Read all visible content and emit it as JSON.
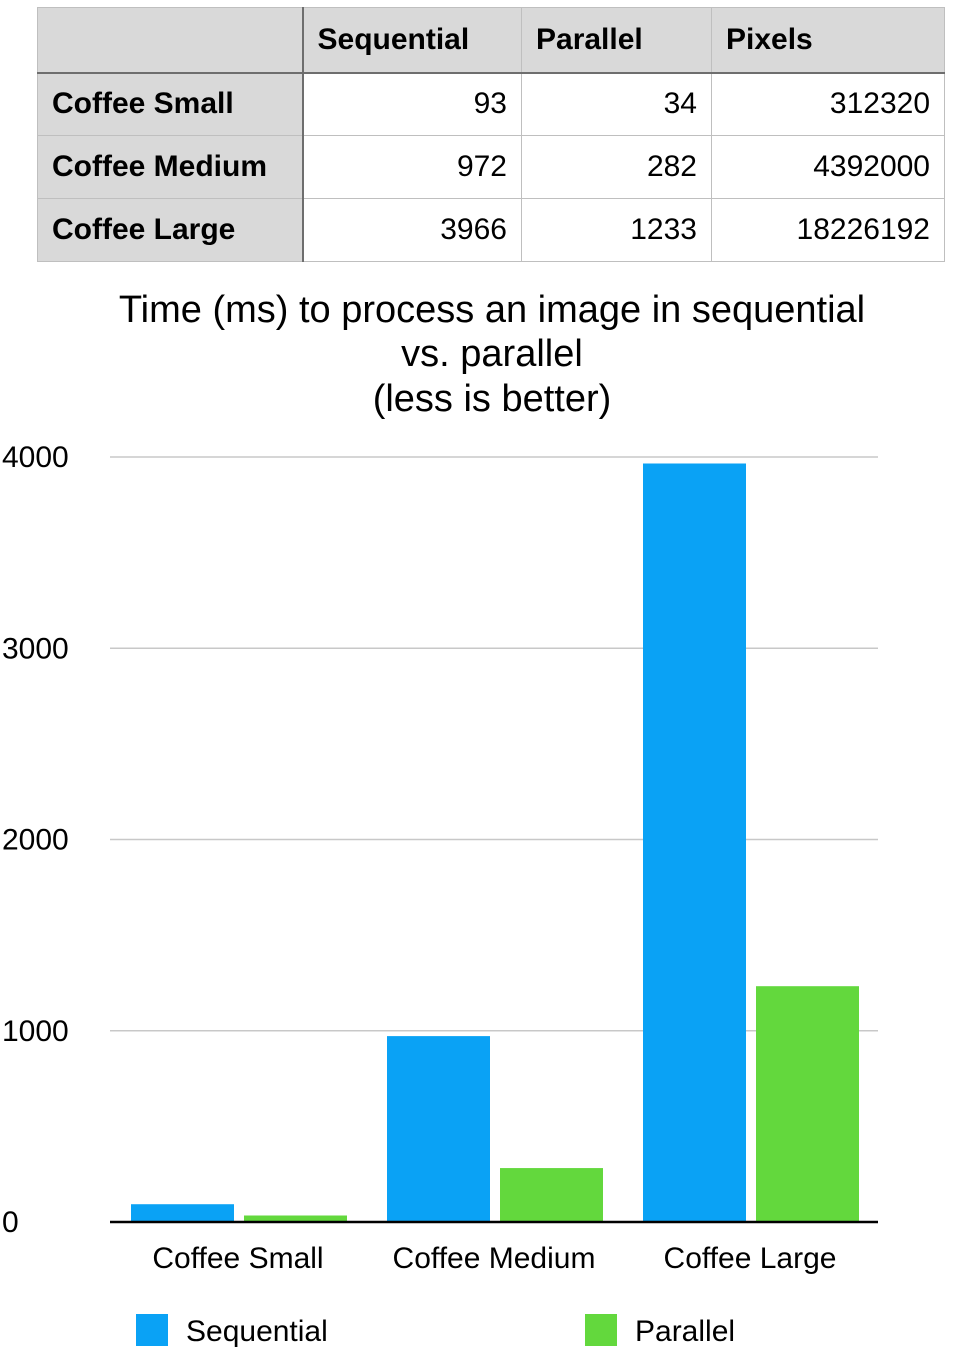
{
  "table": {
    "headers": [
      "",
      "Sequential",
      "Parallel",
      "Pixels"
    ],
    "rows": [
      {
        "label": "Coffee Small",
        "sequential": "93",
        "parallel": "34",
        "pixels": "312320"
      },
      {
        "label": "Coffee Medium",
        "sequential": "972",
        "parallel": "282",
        "pixels": "4392000"
      },
      {
        "label": "Coffee Large",
        "sequential": "3966",
        "parallel": "1233",
        "pixels": "18226192"
      }
    ]
  },
  "chart_data": {
    "type": "bar",
    "title_lines": [
      "Time (ms) to process an image in sequential",
      "vs. parallel",
      "(less is better)"
    ],
    "categories": [
      "Coffee Small",
      "Coffee Medium",
      "Coffee Large"
    ],
    "series": [
      {
        "name": "Sequential",
        "values": [
          93,
          972,
          3966
        ],
        "color": "#0aa2f5"
      },
      {
        "name": "Parallel",
        "values": [
          34,
          282,
          1233
        ],
        "color": "#63d83d"
      }
    ],
    "ylim": [
      0,
      4000
    ],
    "yticks": [
      0,
      1000,
      2000,
      3000,
      4000
    ],
    "grid": true,
    "legend_position": "bottom",
    "xlabel": "",
    "ylabel": ""
  }
}
